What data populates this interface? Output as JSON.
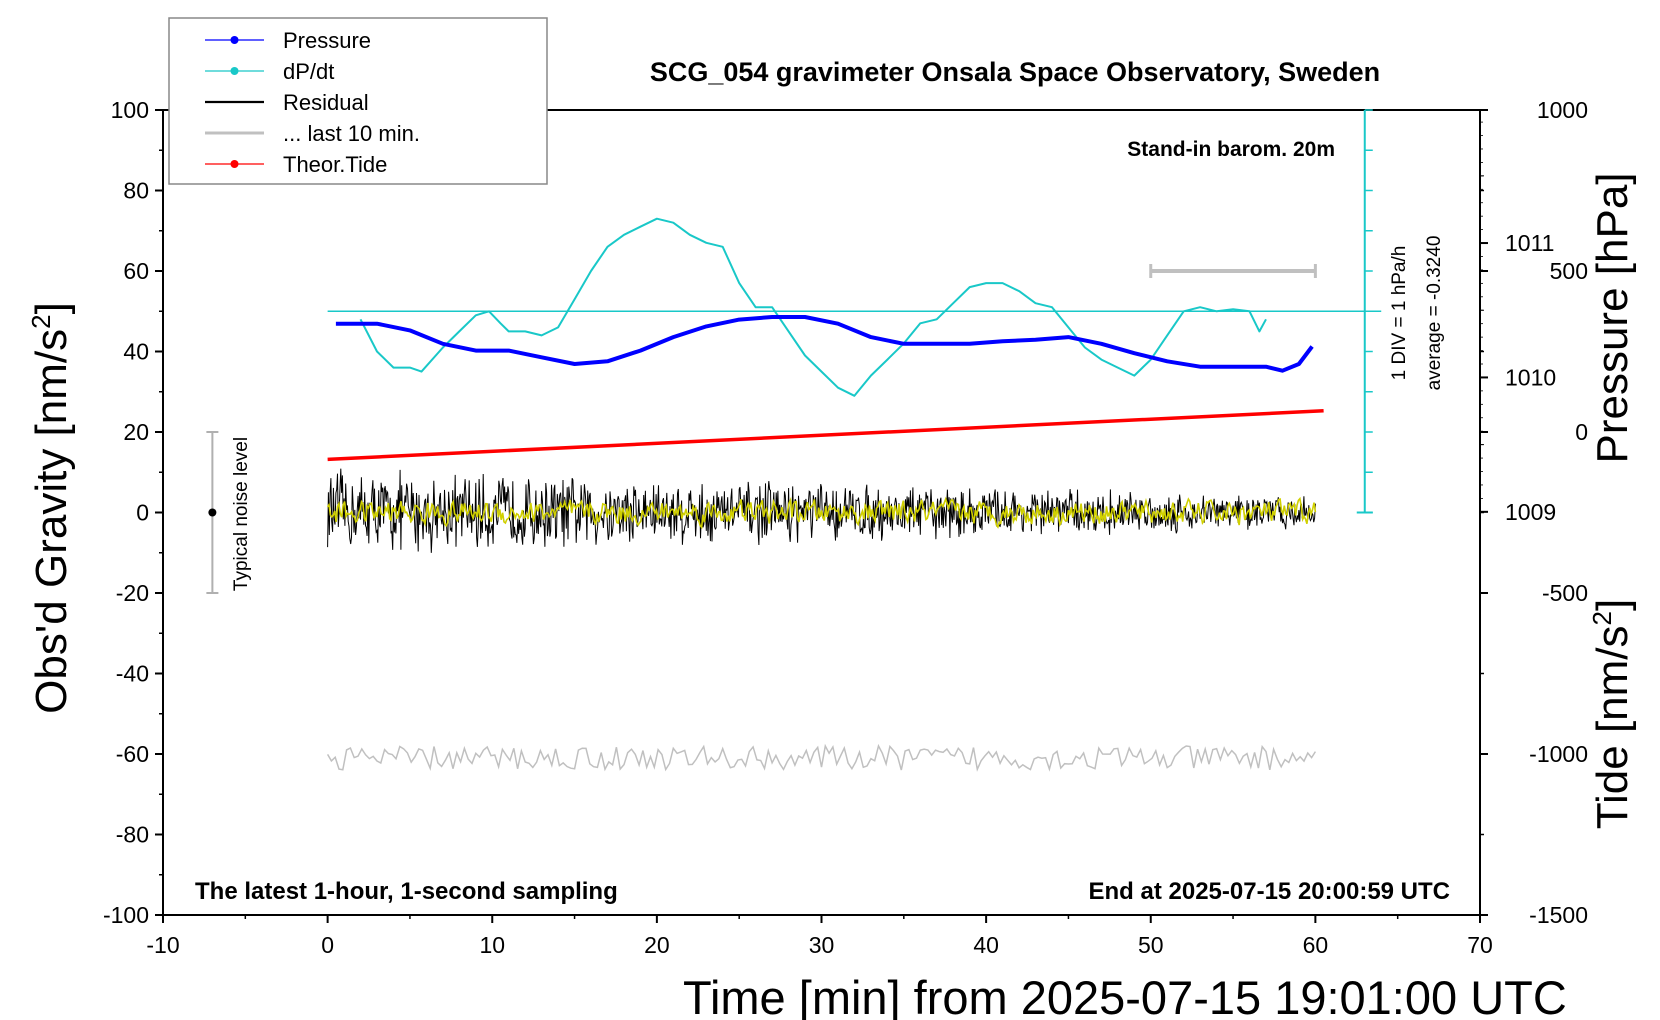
{
  "chart_data": {
    "type": "line",
    "title": "SCG_054 gravimeter Onsala Space Observatory, Sweden",
    "xlabel": "Time [min] from 2025-07-15 19:01:00 UTC",
    "ylabel_main": "Obs'd Gravity [nm/s",
    "ylabel_main_sup": "2",
    "ylabel_main_end": "]",
    "ylabel_pressure": "Pressure [hPa]",
    "ylabel_tide": "Tide [nm/s",
    "ylabel_tide_sup": "2",
    "ylabel_tide_end": "]",
    "xlim": [
      -10,
      70
    ],
    "ylim": [
      -100,
      100
    ],
    "x_ticks": [
      "-10",
      "0",
      "10",
      "20",
      "30",
      "40",
      "50",
      "60",
      "70"
    ],
    "y_ticks": [
      "-100",
      "-80",
      "-60",
      "-40",
      "-20",
      "0",
      "20",
      "40",
      "60",
      "80",
      "100"
    ],
    "pressure_axis": {
      "ticks": [
        "1009",
        "1010",
        "1011"
      ],
      "values": [
        1009,
        1010,
        1011
      ],
      "range": [
        1006.0,
        1011.99
      ]
    },
    "tide_axis": {
      "ticks": [
        "-1500",
        "-1000",
        "-500",
        "0",
        "500",
        "1000"
      ],
      "values": [
        -1500,
        -1000,
        -500,
        0,
        500,
        1000
      ],
      "range": [
        -1500,
        1000
      ]
    },
    "grid": false,
    "legend_position": "top-left",
    "legend": [
      {
        "name": "Pressure",
        "color": "#0000ff",
        "marker": true
      },
      {
        "name": "dP/dt",
        "color": "#19c8c8",
        "marker": true
      },
      {
        "name": "Residual",
        "color": "#000000",
        "marker": false
      },
      {
        "name": "... last 10 min.",
        "color": "#c0c0c0",
        "marker": false
      },
      {
        "name": "Theor.Tide",
        "color": "#ff0000",
        "marker": true
      }
    ],
    "annotations": {
      "standin": "Stand-in barom. 20m",
      "div": "1 DIV = 1 hPa/h",
      "average": "average = -0.3240",
      "noise": "Typical noise level",
      "latest": "The latest 1-hour, 1-second sampling",
      "end": "End at 2025-07-15 20:00:59 UTC"
    },
    "colors": {
      "pressure": "#0000ff",
      "dpdt": "#19c8c8",
      "residual": "#000000",
      "last10": "#c0c0c0",
      "smoothed": "#d0d000",
      "tide": "#ff0000"
    },
    "series": [
      {
        "name": "Pressure",
        "unit": "hPa",
        "x": [
          0.5,
          3,
          5,
          7,
          9,
          11,
          13,
          15,
          17,
          19,
          21,
          23,
          25,
          27,
          29,
          31,
          33,
          35,
          37,
          39,
          41,
          43,
          45,
          47,
          49,
          51,
          53,
          55,
          57,
          58,
          59,
          59.8
        ],
        "y": [
          1010.4,
          1010.4,
          1010.35,
          1010.25,
          1010.2,
          1010.2,
          1010.15,
          1010.1,
          1010.12,
          1010.2,
          1010.3,
          1010.38,
          1010.43,
          1010.45,
          1010.45,
          1010.4,
          1010.3,
          1010.25,
          1010.25,
          1010.25,
          1010.27,
          1010.28,
          1010.3,
          1010.25,
          1010.18,
          1010.12,
          1010.08,
          1010.08,
          1010.08,
          1010.05,
          1010.1,
          1010.23
        ]
      },
      {
        "name": "dP/dt",
        "unit": "hPa/h",
        "x": [
          2,
          3,
          4,
          5,
          5.7,
          7,
          8,
          9,
          9.8,
          10.5,
          11,
          12,
          13,
          14,
          15,
          16,
          17,
          18,
          19,
          20,
          21,
          22,
          23,
          24,
          25,
          26,
          27,
          28,
          29,
          30,
          31,
          32,
          33,
          34,
          35,
          36,
          37,
          38,
          39,
          40,
          41,
          42,
          43,
          44,
          45,
          46,
          47,
          48,
          49,
          50,
          51,
          52,
          53,
          54,
          55,
          56,
          56.6,
          57
        ],
        "y": [
          -0.2,
          -1.0,
          -1.4,
          -1.4,
          -1.5,
          -0.9,
          -0.5,
          -0.1,
          0.0,
          -0.3,
          -0.5,
          -0.5,
          -0.6,
          -0.4,
          0.3,
          1.0,
          1.6,
          1.9,
          2.1,
          2.3,
          2.2,
          1.9,
          1.7,
          1.6,
          0.7,
          0.1,
          0.1,
          -0.5,
          -1.1,
          -1.5,
          -1.9,
          -2.1,
          -1.6,
          -1.2,
          -0.8,
          -0.3,
          -0.2,
          0.2,
          0.6,
          0.7,
          0.7,
          0.5,
          0.2,
          0.1,
          -0.4,
          -0.9,
          -1.2,
          -1.4,
          -1.6,
          -1.2,
          -0.6,
          0.0,
          0.1,
          0.0,
          0.05,
          0.0,
          -0.5,
          -0.2
        ]
      },
      {
        "name": "Theor.Tide",
        "unit": "nm/s2",
        "x": [
          0,
          60.5
        ],
        "y": [
          -85,
          66
        ]
      }
    ],
    "residual_band": {
      "x_start": 0,
      "x_end": 60,
      "mean": 0,
      "amplitude_start": 9,
      "amplitude_end": 3.5
    },
    "smoothed_band": {
      "x_start": 0,
      "x_end": 60,
      "mean": 0,
      "amplitude": 2.5
    },
    "last10_band": {
      "x_start": 0,
      "x_end": 60,
      "mean": -61,
      "amplitude": 3
    },
    "noise_bar": {
      "x": -7,
      "center": 0,
      "half_range": 20
    },
    "scale_bar_x": [
      50,
      60
    ],
    "scale_bar_tide_value": 500
  }
}
